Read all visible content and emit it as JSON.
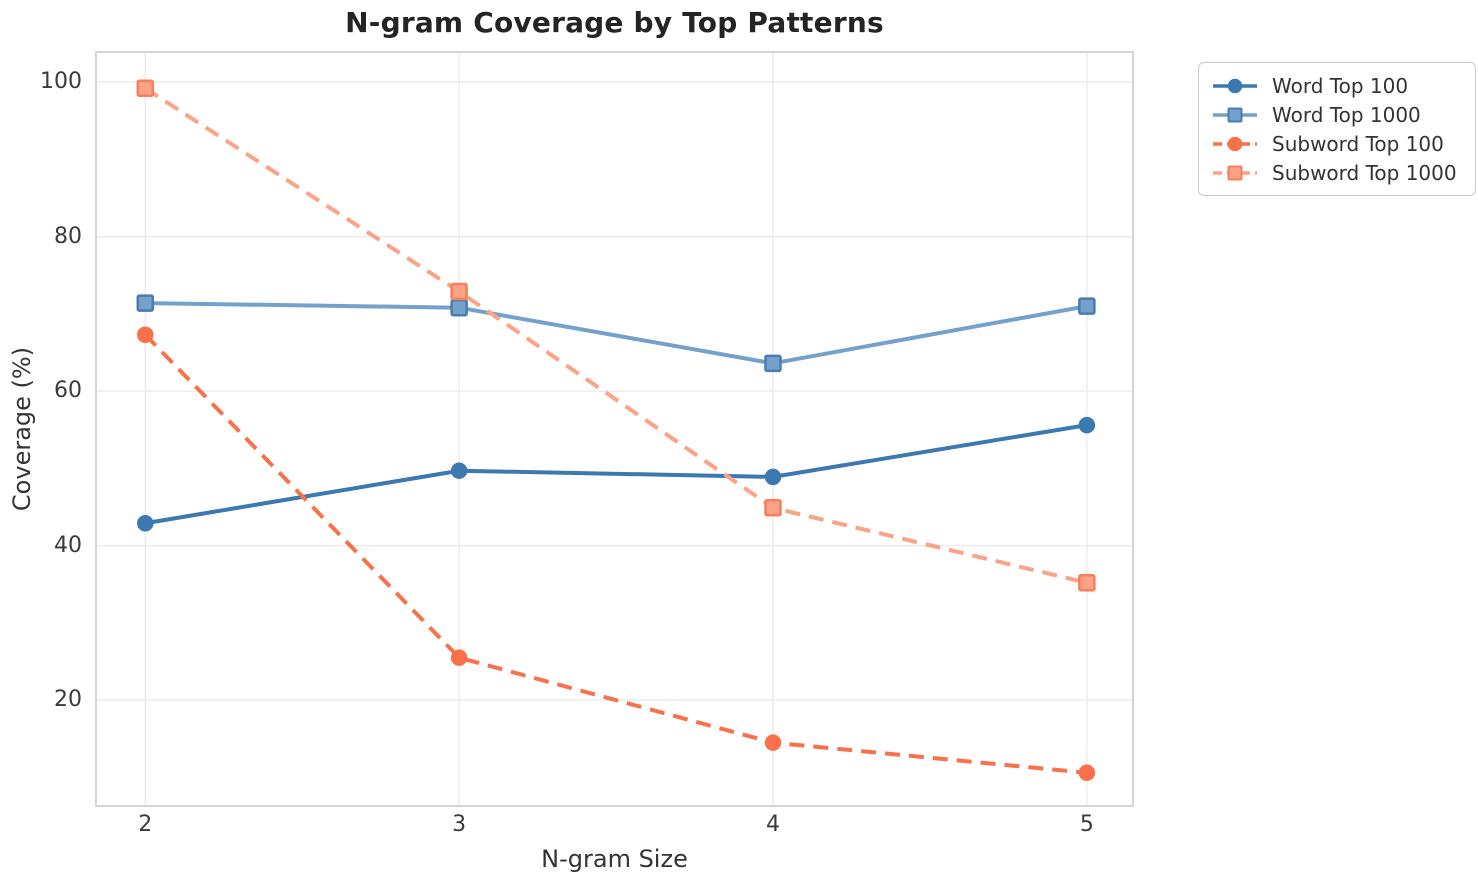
{
  "chart_data": {
    "type": "line",
    "title": "N-gram Coverage by Top Patterns",
    "xlabel": "N-gram Size",
    "ylabel": "Coverage (%)",
    "x": [
      2,
      3,
      4,
      5
    ],
    "x_tick_labels": [
      "2",
      "3",
      "4",
      "5"
    ],
    "y_ticks": [
      20,
      40,
      60,
      80,
      100
    ],
    "y_tick_labels": [
      "20",
      "40",
      "60",
      "80",
      "100"
    ],
    "xlim": [
      1.843,
      5.147
    ],
    "ylim": [
      6.3,
      103.9
    ],
    "grid": true,
    "legend_position": "upper-right-outside",
    "series": [
      {
        "name": "Word Top 100",
        "values": [
          42.9,
          49.7,
          48.9,
          55.6
        ],
        "color": "#3c79b0",
        "marker": "circle",
        "marker_edge": "#3c79b0",
        "line_style": "solid"
      },
      {
        "name": "Word Top 1000",
        "values": [
          71.4,
          70.8,
          63.6,
          71.0
        ],
        "color": "#74a1cc",
        "marker": "square",
        "marker_edge": "#4a7cb0",
        "line_style": "solid"
      },
      {
        "name": "Subword Top 100",
        "values": [
          67.3,
          25.5,
          14.5,
          10.6
        ],
        "color": "#f8714a",
        "marker": "circle",
        "marker_edge": "#f8714a",
        "line_style": "dashed"
      },
      {
        "name": "Subword Top 1000",
        "values": [
          99.2,
          72.9,
          44.9,
          35.2
        ],
        "color": "#fba287",
        "marker": "square",
        "marker_edge": "#f58059",
        "line_style": "dashed"
      }
    ],
    "grid_color": "#ececec",
    "spine_color": "#d5d5d5",
    "tick_color": "#3b3b3b",
    "label_color": "#343434",
    "title_color": "#242424",
    "legend_border_color": "#cbcbcb"
  }
}
